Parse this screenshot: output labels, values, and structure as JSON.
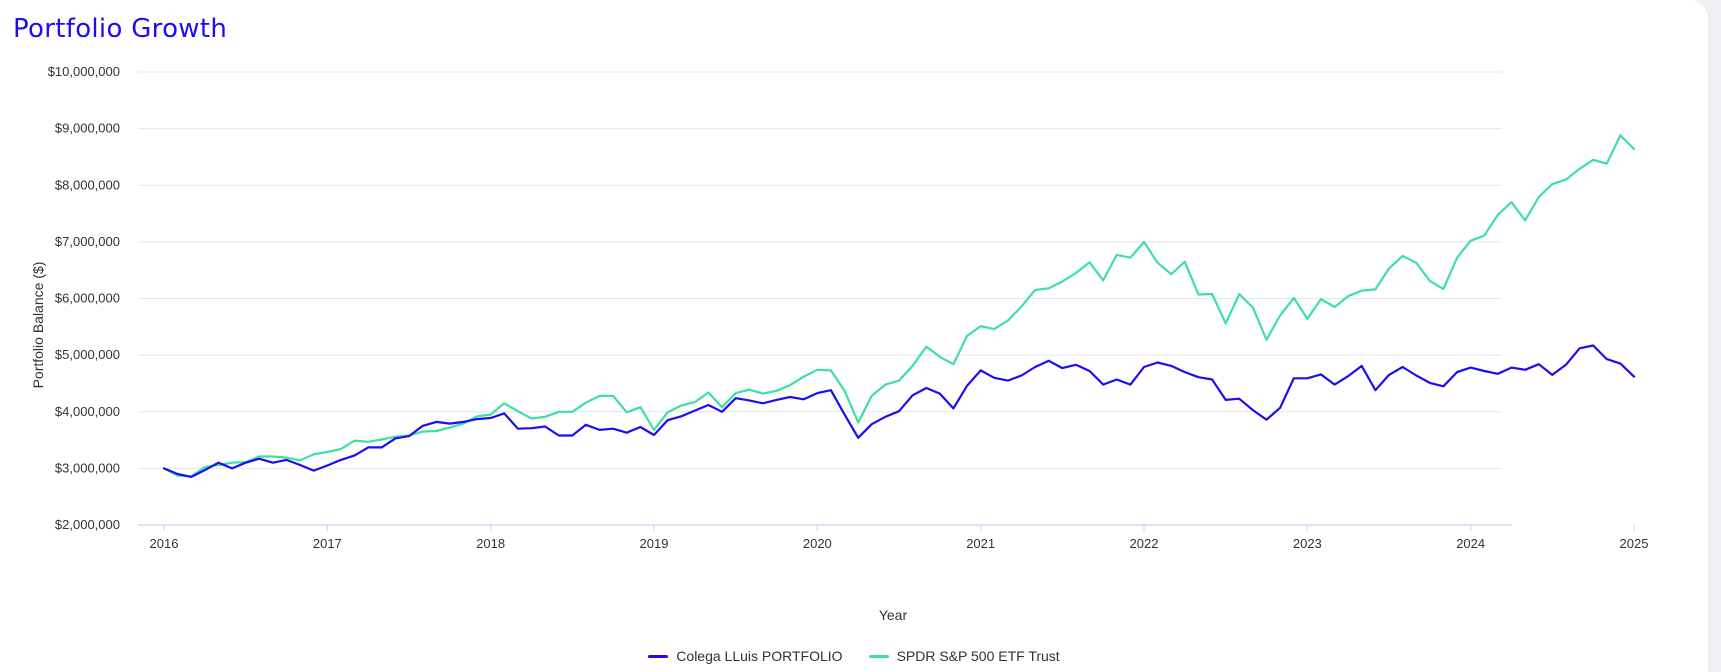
{
  "page": {
    "title": "Portfolio Growth"
  },
  "chart_data": {
    "type": "line",
    "xlabel": "Year",
    "ylabel": "Portfolio Balance ($)",
    "ylim": [
      2000000,
      10000000
    ],
    "y_ticks": [
      "$2,000,000",
      "$3,000,000",
      "$4,000,000",
      "$5,000,000",
      "$6,000,000",
      "$7,000,000",
      "$8,000,000",
      "$9,000,000",
      "$10,000,000"
    ],
    "y_tick_values": [
      2000000,
      3000000,
      4000000,
      5000000,
      6000000,
      7000000,
      8000000,
      9000000,
      10000000
    ],
    "x_ticks": [
      "2016",
      "2017",
      "2018",
      "2019",
      "2020",
      "2021",
      "2022",
      "2023",
      "2024",
      "2025"
    ],
    "xlim": [
      2016,
      2025
    ],
    "grid": "horizontal",
    "legend_position": "bottom",
    "series": [
      {
        "name": "Colega LLuis PORTFOLIO",
        "color": "#1d0df0",
        "x": [
          2016.0,
          2016.083,
          2016.167,
          2016.25,
          2016.333,
          2016.417,
          2016.5,
          2016.583,
          2016.667,
          2016.75,
          2016.833,
          2016.917,
          2017.0,
          2017.083,
          2017.167,
          2017.25,
          2017.333,
          2017.417,
          2017.5,
          2017.583,
          2017.667,
          2017.75,
          2017.833,
          2017.917,
          2018.0,
          2018.083,
          2018.167,
          2018.25,
          2018.333,
          2018.417,
          2018.5,
          2018.583,
          2018.667,
          2018.75,
          2018.833,
          2018.917,
          2019.0,
          2019.083,
          2019.167,
          2019.25,
          2019.333,
          2019.417,
          2019.5,
          2019.583,
          2019.667,
          2019.75,
          2019.833,
          2019.917,
          2020.0,
          2020.083,
          2020.167,
          2020.25,
          2020.333,
          2020.417,
          2020.5,
          2020.583,
          2020.667,
          2020.75,
          2020.833,
          2020.917,
          2021.0,
          2021.083,
          2021.167,
          2021.25,
          2021.333,
          2021.417,
          2021.5,
          2021.583,
          2021.667,
          2021.75,
          2021.833,
          2021.917,
          2022.0,
          2022.083,
          2022.167,
          2022.25,
          2022.333,
          2022.417,
          2022.5,
          2022.583,
          2022.667,
          2022.75,
          2022.833,
          2022.917,
          2023.0,
          2023.083,
          2023.167,
          2023.25,
          2023.333,
          2023.417,
          2023.5,
          2023.583,
          2023.667,
          2023.75,
          2023.833,
          2023.917,
          2024.0,
          2024.083,
          2024.167,
          2024.25,
          2024.333,
          2024.417,
          2024.5,
          2024.583,
          2024.667,
          2024.75,
          2024.833,
          2024.917,
          2025.0
        ],
        "values": [
          3000000,
          2900000,
          2850000,
          2970000,
          3100000,
          3000000,
          3100000,
          3170000,
          3100000,
          3150000,
          3060000,
          2960000,
          3050000,
          3150000,
          3230000,
          3370000,
          3370000,
          3530000,
          3570000,
          3750000,
          3820000,
          3790000,
          3820000,
          3870000,
          3890000,
          3970000,
          3700000,
          3710000,
          3740000,
          3580000,
          3580000,
          3770000,
          3680000,
          3700000,
          3630000,
          3730000,
          3590000,
          3850000,
          3920000,
          4020000,
          4120000,
          4000000,
          4240000,
          4200000,
          4150000,
          4210000,
          4260000,
          4220000,
          4330000,
          4380000,
          3950000,
          3540000,
          3780000,
          3910000,
          4010000,
          4290000,
          4420000,
          4320000,
          4060000,
          4460000,
          4730000,
          4600000,
          4550000,
          4640000,
          4790000,
          4900000,
          4770000,
          4830000,
          4720000,
          4480000,
          4570000,
          4480000,
          4790000,
          4870000,
          4810000,
          4700000,
          4610000,
          4570000,
          4210000,
          4230000,
          4030000,
          3860000,
          4070000,
          4590000,
          4590000,
          4660000,
          4480000,
          4630000,
          4810000,
          4380000,
          4650000,
          4790000,
          4640000,
          4510000,
          4450000,
          4700000,
          4780000,
          4720000,
          4670000,
          4780000,
          4740000,
          4840000,
          4650000,
          4830000,
          5120000,
          5170000,
          4930000,
          4850000,
          4620000
        ]
      },
      {
        "name": "SPDR S&P 500 ETF Trust",
        "color": "#3ee0a2",
        "x": [
          2016.0,
          2016.083,
          2016.167,
          2016.25,
          2016.333,
          2016.417,
          2016.5,
          2016.583,
          2016.667,
          2016.75,
          2016.833,
          2016.917,
          2017.0,
          2017.083,
          2017.167,
          2017.25,
          2017.333,
          2017.417,
          2017.5,
          2017.583,
          2017.667,
          2017.75,
          2017.833,
          2017.917,
          2018.0,
          2018.083,
          2018.167,
          2018.25,
          2018.333,
          2018.417,
          2018.5,
          2018.583,
          2018.667,
          2018.75,
          2018.833,
          2018.917,
          2019.0,
          2019.083,
          2019.167,
          2019.25,
          2019.333,
          2019.417,
          2019.5,
          2019.583,
          2019.667,
          2019.75,
          2019.833,
          2019.917,
          2020.0,
          2020.083,
          2020.167,
          2020.25,
          2020.333,
          2020.417,
          2020.5,
          2020.583,
          2020.667,
          2020.75,
          2020.833,
          2020.917,
          2021.0,
          2021.083,
          2021.167,
          2021.25,
          2021.333,
          2021.417,
          2021.5,
          2021.583,
          2021.667,
          2021.75,
          2021.833,
          2021.917,
          2022.0,
          2022.083,
          2022.167,
          2022.25,
          2022.333,
          2022.417,
          2022.5,
          2022.583,
          2022.667,
          2022.75,
          2022.833,
          2022.917,
          2023.0,
          2023.083,
          2023.167,
          2023.25,
          2023.333,
          2023.417,
          2023.5,
          2023.583,
          2023.667,
          2023.75,
          2023.833,
          2023.917,
          2024.0,
          2024.083,
          2024.167,
          2024.25,
          2024.333,
          2024.417,
          2024.5,
          2024.583,
          2024.667,
          2024.75,
          2024.833,
          2024.917,
          2025.0
        ],
        "values": [
          3000000,
          2870000,
          2860000,
          3020000,
          3060000,
          3100000,
          3110000,
          3210000,
          3210000,
          3190000,
          3140000,
          3250000,
          3290000,
          3340000,
          3490000,
          3470000,
          3510000,
          3560000,
          3580000,
          3650000,
          3660000,
          3720000,
          3790000,
          3920000,
          3950000,
          4150000,
          4010000,
          3880000,
          3910000,
          4000000,
          4000000,
          4160000,
          4280000,
          4280000,
          3990000,
          4080000,
          3680000,
          3990000,
          4110000,
          4170000,
          4340000,
          4080000,
          4330000,
          4390000,
          4320000,
          4370000,
          4470000,
          4620000,
          4740000,
          4730000,
          4370000,
          3810000,
          4280000,
          4480000,
          4550000,
          4810000,
          5150000,
          4970000,
          4840000,
          5340000,
          5510000,
          5460000,
          5610000,
          5860000,
          6150000,
          6180000,
          6300000,
          6450000,
          6640000,
          6320000,
          6770000,
          6720000,
          7000000,
          6630000,
          6430000,
          6650000,
          6070000,
          6080000,
          5560000,
          6080000,
          5840000,
          5270000,
          5700000,
          6010000,
          5640000,
          5990000,
          5850000,
          6040000,
          6140000,
          6160000,
          6530000,
          6750000,
          6630000,
          6310000,
          6170000,
          6720000,
          7020000,
          7110000,
          7480000,
          7700000,
          7380000,
          7790000,
          8020000,
          8100000,
          8290000,
          8450000,
          8380000,
          8880000,
          8640000
        ]
      }
    ]
  }
}
